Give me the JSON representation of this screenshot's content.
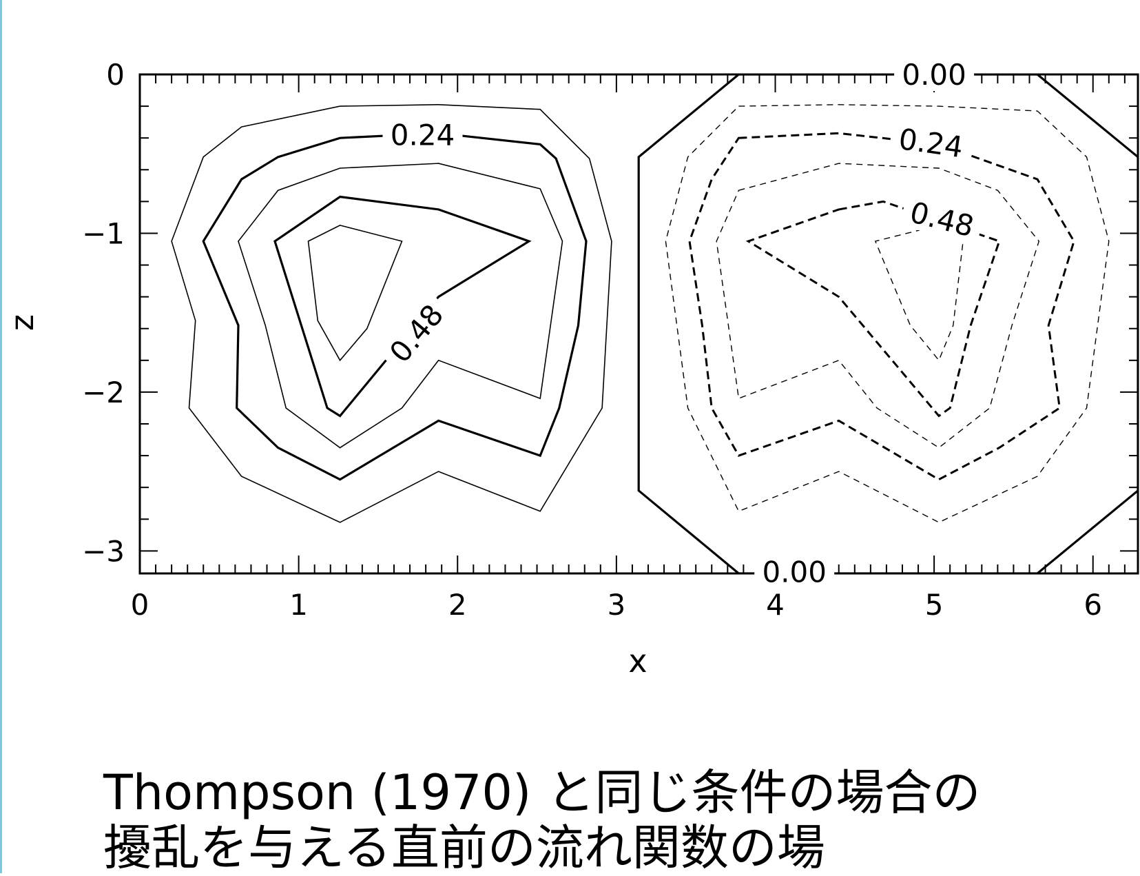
{
  "caption": {
    "line1": "Thompson (1970) と同じ条件の場合の",
    "line2": "擾乱を与える直前の流れ関数の場"
  },
  "chart_data": {
    "type": "contour",
    "xlabel": "x",
    "ylabel": "z",
    "xlim": [
      0,
      6.283
    ],
    "ylim": [
      -3.1416,
      0
    ],
    "x_ticks": [
      0,
      1,
      2,
      3,
      4,
      5,
      6
    ],
    "x_tick_labels": [
      "0",
      "1",
      "2",
      "3",
      "4",
      "5",
      "6"
    ],
    "y_ticks": [
      0,
      -1,
      -2,
      -3
    ],
    "y_tick_labels": [
      "0",
      "−1",
      "−2",
      "−3"
    ],
    "grid": false,
    "contours": [
      {
        "name": "pos-0.12",
        "style": "thin-solid",
        "points": [
          [
            1.26,
            -0.2
          ],
          [
            1.88,
            -0.19
          ],
          [
            2.52,
            -0.22
          ],
          [
            2.83,
            -0.53
          ],
          [
            2.97,
            -1.05
          ],
          [
            2.91,
            -2.1
          ],
          [
            2.52,
            -2.75
          ],
          [
            1.88,
            -2.5
          ],
          [
            1.26,
            -2.82
          ],
          [
            0.64,
            -2.53
          ],
          [
            0.31,
            -2.1
          ],
          [
            0.35,
            -1.55
          ],
          [
            0.2,
            -1.05
          ],
          [
            0.4,
            -0.52
          ],
          [
            0.64,
            -0.33
          ]
        ]
      },
      {
        "name": "pos-0.24",
        "style": "thick-solid",
        "label": "0.24",
        "points": [
          [
            1.26,
            -0.4
          ],
          [
            1.88,
            -0.37
          ],
          [
            2.52,
            -0.44
          ],
          [
            2.62,
            -0.53
          ],
          [
            2.81,
            -1.05
          ],
          [
            2.76,
            -1.58
          ],
          [
            2.64,
            -2.1
          ],
          [
            2.52,
            -2.4
          ],
          [
            1.88,
            -2.18
          ],
          [
            1.26,
            -2.55
          ],
          [
            0.87,
            -2.35
          ],
          [
            0.61,
            -2.1
          ],
          [
            0.62,
            -1.58
          ],
          [
            0.4,
            -1.05
          ],
          [
            0.64,
            -0.66
          ],
          [
            0.87,
            -0.52
          ]
        ]
      },
      {
        "name": "pos-0.36",
        "style": "thin-solid",
        "points": [
          [
            1.26,
            -0.59
          ],
          [
            1.88,
            -0.56
          ],
          [
            2.52,
            -0.72
          ],
          [
            2.66,
            -1.05
          ],
          [
            2.52,
            -2.04
          ],
          [
            1.88,
            -1.8
          ],
          [
            1.65,
            -2.1
          ],
          [
            1.26,
            -2.35
          ],
          [
            0.92,
            -2.1
          ],
          [
            0.79,
            -1.58
          ],
          [
            0.62,
            -1.05
          ],
          [
            0.87,
            -0.73
          ]
        ]
      },
      {
        "name": "pos-0.48",
        "style": "thick-solid",
        "label": "0.48",
        "points": [
          [
            1.26,
            -0.77
          ],
          [
            1.88,
            -0.85
          ],
          [
            2.45,
            -1.05
          ],
          [
            1.88,
            -1.4
          ],
          [
            1.26,
            -2.15
          ],
          [
            1.18,
            -2.1
          ],
          [
            0.85,
            -1.05
          ]
        ]
      },
      {
        "name": "pos-0.60",
        "style": "thin-solid",
        "points": [
          [
            1.26,
            -0.95
          ],
          [
            1.65,
            -1.05
          ],
          [
            1.43,
            -1.6
          ],
          [
            1.26,
            -1.8
          ],
          [
            1.12,
            -1.55
          ],
          [
            1.06,
            -1.05
          ]
        ]
      },
      {
        "name": "zero",
        "style": "thick-solid",
        "label": "0.00",
        "points": [
          [
            3.77,
            0
          ],
          [
            3.14,
            -0.52
          ],
          [
            3.14,
            -2.62
          ],
          [
            3.77,
            -3.1416
          ],
          [
            5.65,
            -3.1416
          ],
          [
            6.283,
            -2.62
          ],
          [
            6.283,
            -0.52
          ],
          [
            5.65,
            0
          ]
        ]
      },
      {
        "name": "neg-0.12",
        "style": "thin-dashed",
        "points": [
          [
            3.77,
            -0.2
          ],
          [
            4.4,
            -0.19
          ],
          [
            5.03,
            -0.2
          ],
          [
            5.65,
            -0.23
          ],
          [
            5.96,
            -0.52
          ],
          [
            6.1,
            -1.05
          ],
          [
            5.96,
            -2.1
          ],
          [
            5.65,
            -2.53
          ],
          [
            5.03,
            -2.82
          ],
          [
            4.4,
            -2.5
          ],
          [
            3.77,
            -2.75
          ],
          [
            3.45,
            -2.1
          ],
          [
            3.31,
            -1.05
          ],
          [
            3.45,
            -0.52
          ]
        ]
      },
      {
        "name": "neg-0.24",
        "style": "thick-dashed",
        "label": "0.24",
        "points": [
          [
            3.77,
            -0.4
          ],
          [
            4.4,
            -0.37
          ],
          [
            5.03,
            -0.44
          ],
          [
            5.65,
            -0.66
          ],
          [
            5.88,
            -1.05
          ],
          [
            5.72,
            -1.58
          ],
          [
            5.79,
            -2.1
          ],
          [
            5.41,
            -2.35
          ],
          [
            5.03,
            -2.55
          ],
          [
            4.4,
            -2.18
          ],
          [
            3.77,
            -2.4
          ],
          [
            3.6,
            -2.1
          ],
          [
            3.54,
            -1.58
          ],
          [
            3.46,
            -1.05
          ],
          [
            3.6,
            -0.66
          ]
        ]
      },
      {
        "name": "neg-0.36",
        "style": "thin-dashed",
        "points": [
          [
            3.77,
            -0.73
          ],
          [
            4.4,
            -0.56
          ],
          [
            5.03,
            -0.59
          ],
          [
            5.4,
            -0.73
          ],
          [
            5.66,
            -1.05
          ],
          [
            5.49,
            -1.58
          ],
          [
            5.35,
            -2.1
          ],
          [
            5.03,
            -2.35
          ],
          [
            4.64,
            -2.1
          ],
          [
            4.4,
            -1.8
          ],
          [
            3.77,
            -2.04
          ],
          [
            3.63,
            -1.05
          ]
        ]
      },
      {
        "name": "neg-0.48",
        "style": "thick-dashed",
        "label": "0.48",
        "points": [
          [
            4.4,
            -0.85
          ],
          [
            4.68,
            -0.8
          ],
          [
            5.41,
            -1.05
          ],
          [
            5.23,
            -1.58
          ],
          [
            5.1,
            -2.1
          ],
          [
            5.03,
            -2.15
          ],
          [
            4.4,
            -1.4
          ],
          [
            3.83,
            -1.05
          ]
        ]
      },
      {
        "name": "neg-0.60",
        "style": "thin-dashed",
        "points": [
          [
            5.03,
            -0.95
          ],
          [
            5.2,
            -0.9
          ],
          [
            5.12,
            -1.58
          ],
          [
            5.03,
            -1.8
          ],
          [
            4.85,
            -1.58
          ],
          [
            4.63,
            -1.05
          ]
        ]
      }
    ],
    "contour_labels": [
      {
        "text": "0.24",
        "x": 1.78,
        "y": -0.38,
        "rotation": 0
      },
      {
        "text": "0.48",
        "x": 1.74,
        "y": -1.63,
        "rotation": -50
      },
      {
        "text": "0.00",
        "x": 5.0,
        "y": 0.0,
        "rotation": 0
      },
      {
        "text": "0.00",
        "x": 4.12,
        "y": -3.13,
        "rotation": 0
      },
      {
        "text": "0.24",
        "x": 4.98,
        "y": -0.43,
        "rotation": 8
      },
      {
        "text": "0.48",
        "x": 5.05,
        "y": -0.91,
        "rotation": 14
      }
    ]
  }
}
